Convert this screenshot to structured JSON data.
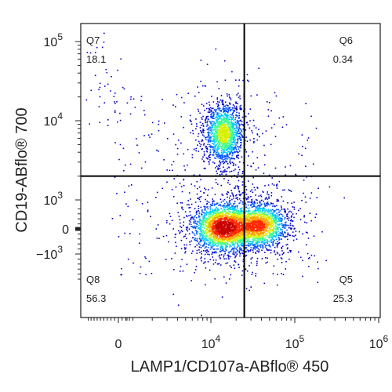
{
  "chart_data": {
    "type": "scatter",
    "subtype": "flow-cytometry-density-dot-plot",
    "xlabel": "LAMP1/CD107a-ABflo® 450",
    "ylabel": "CD19-ABflo® 700",
    "x_axis": {
      "scale": "biexponential",
      "ticks": [
        {
          "value": 0,
          "label": "0"
        },
        {
          "value": 10000,
          "label": "10",
          "exp": "4"
        },
        {
          "value": 100000,
          "label": "10",
          "exp": "5"
        },
        {
          "value": 1000000,
          "label": "10",
          "exp": "6"
        }
      ]
    },
    "y_axis": {
      "scale": "biexponential",
      "ticks": [
        {
          "value": -1000,
          "label": "−10",
          "exp": "3"
        },
        {
          "value": 0,
          "label": "0"
        },
        {
          "value": 1000,
          "label": "10",
          "exp": "3"
        },
        {
          "value": 10000,
          "label": "10",
          "exp": "4"
        },
        {
          "value": 100000,
          "label": "10",
          "exp": "5"
        }
      ]
    },
    "gate": {
      "x": 25000,
      "y": 2000
    },
    "quadrants": [
      {
        "name": "Q7",
        "percent": "18.1",
        "position": "top-left"
      },
      {
        "name": "Q6",
        "percent": "0.34",
        "position": "top-right"
      },
      {
        "name": "Q8",
        "percent": "56.3",
        "position": "bottom-left"
      },
      {
        "name": "Q5",
        "percent": "25.3",
        "position": "bottom-right"
      }
    ],
    "populations": [
      {
        "x": 14000,
        "y": 7000
      },
      {
        "x": 14000,
        "y": 80
      },
      {
        "x": 38000,
        "y": 150
      }
    ],
    "grid": false,
    "legend": "none",
    "colormap": [
      "#0000cc",
      "#0050ff",
      "#00c8ff",
      "#40ff90",
      "#d8f000",
      "#ffa000",
      "#ff2800",
      "#c80000"
    ]
  }
}
